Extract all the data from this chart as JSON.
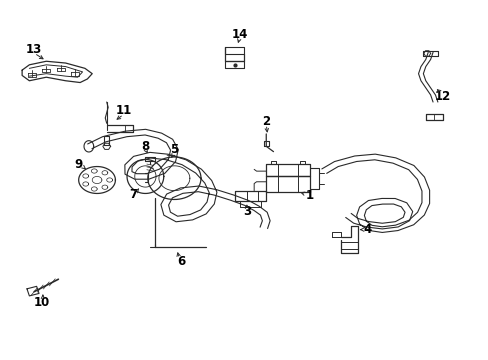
{
  "background_color": "#ffffff",
  "line_color": "#2a2a2a",
  "figure_width": 4.89,
  "figure_height": 3.6,
  "dpi": 100
}
